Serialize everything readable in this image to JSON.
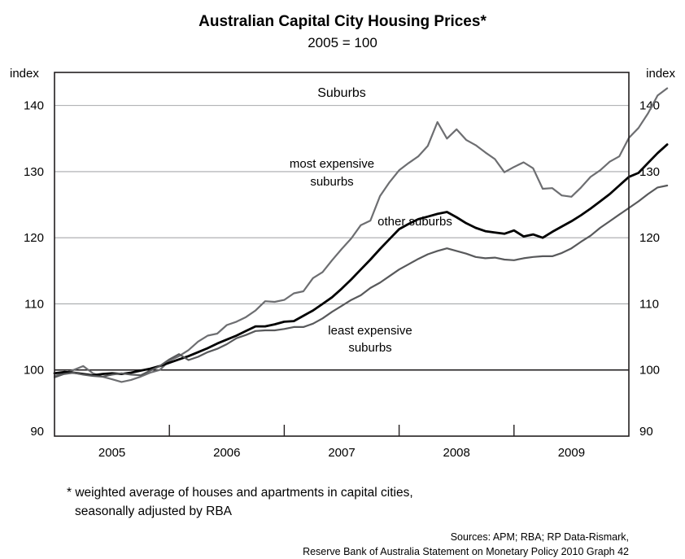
{
  "chart_data": {
    "type": "line",
    "title": "Australian Capital City Housing Prices*",
    "subtitle": "2005 = 100",
    "panel_title": "Suburbs",
    "ylabel_left": "index",
    "ylabel_right": "index",
    "ylim": [
      90,
      145
    ],
    "yticks": [
      90,
      100,
      110,
      120,
      130,
      140
    ],
    "xlim": [
      2005.0,
      2010.0
    ],
    "x_tick_labels": [
      "2005",
      "2006",
      "2007",
      "2008",
      "2009"
    ],
    "reference_line": 100,
    "grid": true,
    "x_start": "2005-Q1",
    "x_step_months": 1,
    "series": [
      {
        "name": "most expensive suburbs",
        "color": "#6d6e71",
        "values": [
          99.1,
          99.5,
          100.0,
          100.6,
          99.5,
          99.0,
          98.6,
          98.2,
          98.5,
          99.0,
          99.6,
          100.0,
          101.4,
          102.1,
          103.0,
          104.3,
          105.2,
          105.5,
          106.8,
          107.3,
          108.0,
          109.0,
          110.4,
          110.3,
          110.6,
          111.6,
          111.9,
          113.9,
          114.8,
          116.6,
          118.3,
          119.9,
          121.9,
          122.6,
          126.3,
          128.4,
          130.2,
          131.3,
          132.3,
          133.9,
          137.5,
          135.0,
          136.4,
          134.8,
          134.0,
          132.9,
          131.9,
          129.9,
          130.7,
          131.4,
          130.5,
          127.4,
          127.5,
          126.4,
          126.2,
          127.6,
          129.2,
          130.2,
          131.5,
          132.3,
          135.1,
          136.6,
          138.8,
          141.5,
          142.6
        ]
      },
      {
        "name": "other suburbs",
        "color": "#000000",
        "values": [
          99.5,
          99.7,
          99.6,
          99.4,
          99.2,
          99.4,
          99.5,
          99.4,
          99.6,
          99.9,
          100.2,
          100.6,
          101.1,
          101.6,
          102.1,
          102.7,
          103.3,
          104.0,
          104.6,
          105.2,
          105.9,
          106.6,
          106.6,
          106.9,
          107.3,
          107.4,
          108.2,
          109.0,
          110.0,
          111.0,
          112.3,
          113.7,
          115.2,
          116.7,
          118.3,
          119.8,
          121.3,
          122.1,
          122.8,
          123.2,
          123.6,
          123.9,
          123.1,
          122.2,
          121.5,
          121.0,
          120.8,
          120.6,
          121.1,
          120.2,
          120.5,
          120.0,
          120.9,
          121.7,
          122.5,
          123.4,
          124.4,
          125.5,
          126.6,
          127.9,
          129.2,
          129.8,
          131.3,
          132.8,
          134.1
        ]
      },
      {
        "name": "least expensive suburbs",
        "color": "#58595b",
        "values": [
          98.9,
          99.4,
          99.6,
          99.3,
          99.1,
          99.0,
          99.3,
          99.5,
          99.3,
          99.2,
          99.9,
          100.6,
          101.6,
          102.4,
          101.5,
          102.0,
          102.7,
          103.2,
          103.9,
          104.8,
          105.3,
          105.9,
          106.0,
          106.0,
          106.2,
          106.5,
          106.5,
          107.0,
          107.8,
          108.8,
          109.7,
          110.6,
          111.3,
          112.4,
          113.2,
          114.2,
          115.2,
          116.0,
          116.8,
          117.5,
          118.0,
          118.4,
          118.0,
          117.6,
          117.1,
          116.9,
          117.0,
          116.7,
          116.6,
          116.9,
          117.1,
          117.2,
          117.2,
          117.7,
          118.4,
          119.4,
          120.3,
          121.5,
          122.5,
          123.5,
          124.5,
          125.5,
          126.6,
          127.6,
          127.9
        ]
      }
    ],
    "annotations": {
      "most_expensive": [
        "most expensive",
        "suburbs"
      ],
      "other": "other suburbs",
      "least_expensive": [
        "least expensive",
        "suburbs"
      ]
    },
    "footnote": [
      "* weighted average of houses and apartments in capital cities,",
      "seasonally adjusted by RBA"
    ],
    "sources": [
      "Sources: APM; RBA; RP Data-Rismark,",
      "Reserve Bank of Australia Statement on Monetary Policy 2010 Graph 42"
    ]
  }
}
